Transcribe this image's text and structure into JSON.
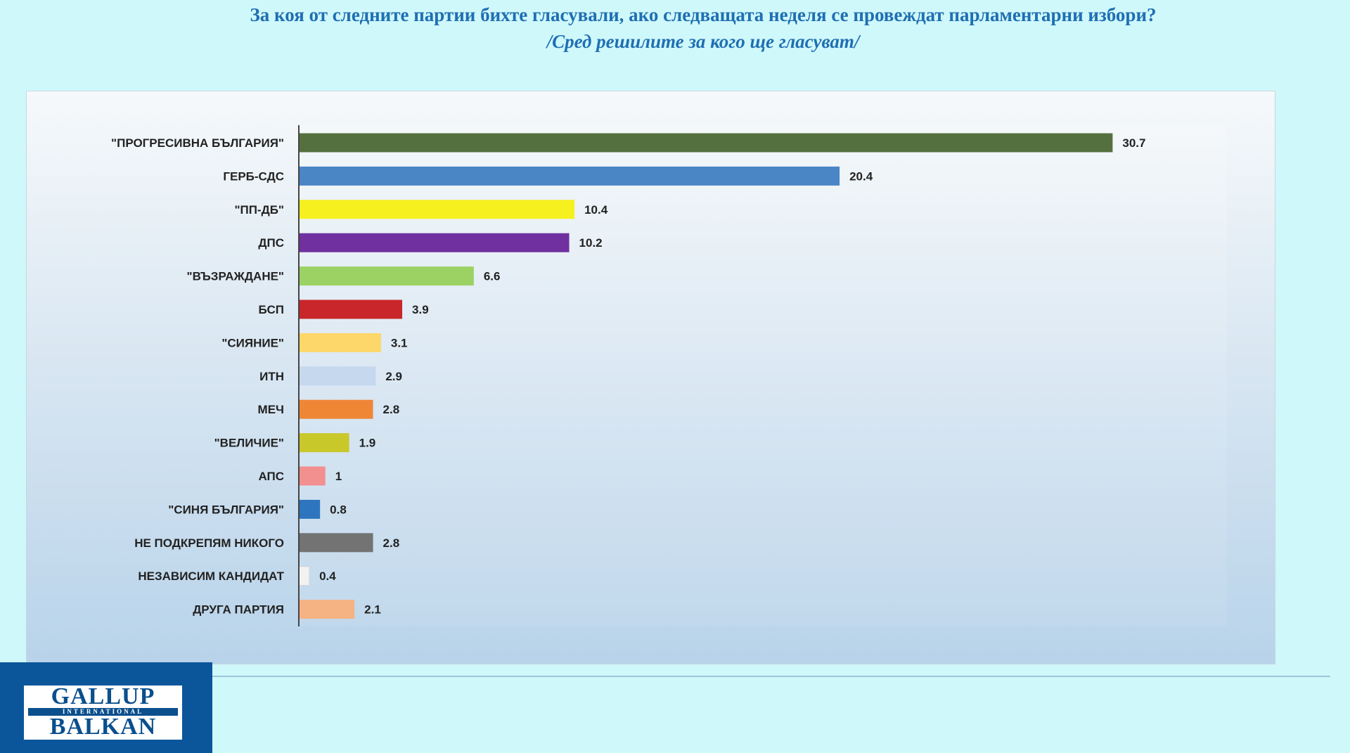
{
  "header": {
    "title": "За коя от следните партии бихте  гласували,  ако следващата неделя се провеждат парламентарни избори?",
    "subtitle": "/Сред решилите за кого ще гласуват/"
  },
  "logo": {
    "line1": "GALLUP",
    "line2": "INTERNATIONAL",
    "line3": "BALKAN"
  },
  "chart_data": {
    "type": "bar",
    "orientation": "horizontal",
    "title": "За коя от следните партии бихте  гласували,  ако следващата неделя се провеждат парламентарни избори?",
    "subtitle": "/Сред решилите за кого ще гласуват/",
    "xlabel": "",
    "ylabel": "",
    "xlim": [
      0,
      35
    ],
    "grid": false,
    "categories": [
      "\"ПРОГРЕСИВНА БЪЛГАРИЯ\"",
      "ГЕРБ-СДС",
      "\"ПП-ДБ\"",
      "ДПС",
      "\"ВЪЗРАЖДАНЕ\"",
      "БСП",
      "\"СИЯНИЕ\"",
      "ИТН",
      "МЕЧ",
      "\"ВЕЛИЧИЕ\"",
      "АПС",
      "\"СИНЯ БЪЛГАРИЯ\"",
      "НЕ ПОДКРЕПЯМ НИКОГО",
      "НЕЗАВИСИМ КАНДИДАТ",
      "ДРУГА ПАРТИЯ"
    ],
    "values": [
      30.7,
      20.4,
      10.4,
      10.2,
      6.6,
      3.9,
      3.1,
      2.9,
      2.8,
      1.9,
      1,
      0.8,
      2.8,
      0.4,
      2.1
    ],
    "value_labels": [
      "30.7",
      "20.4",
      "10.4",
      "10.2",
      "6.6",
      "3.9",
      "3.1",
      "2.9",
      "2.8",
      "1.9",
      "1",
      "0.8",
      "2.8",
      "0.4",
      "2.1"
    ],
    "colors": [
      "#55703f",
      "#4a86c5",
      "#f5f01e",
      "#7030a0",
      "#9bd263",
      "#c8262a",
      "#fdd76a",
      "#c5d8ee",
      "#ef8636",
      "#c9c82a",
      "#f28f8f",
      "#2e75c0",
      "#737373",
      "#f2f2f2",
      "#f5b383"
    ]
  }
}
